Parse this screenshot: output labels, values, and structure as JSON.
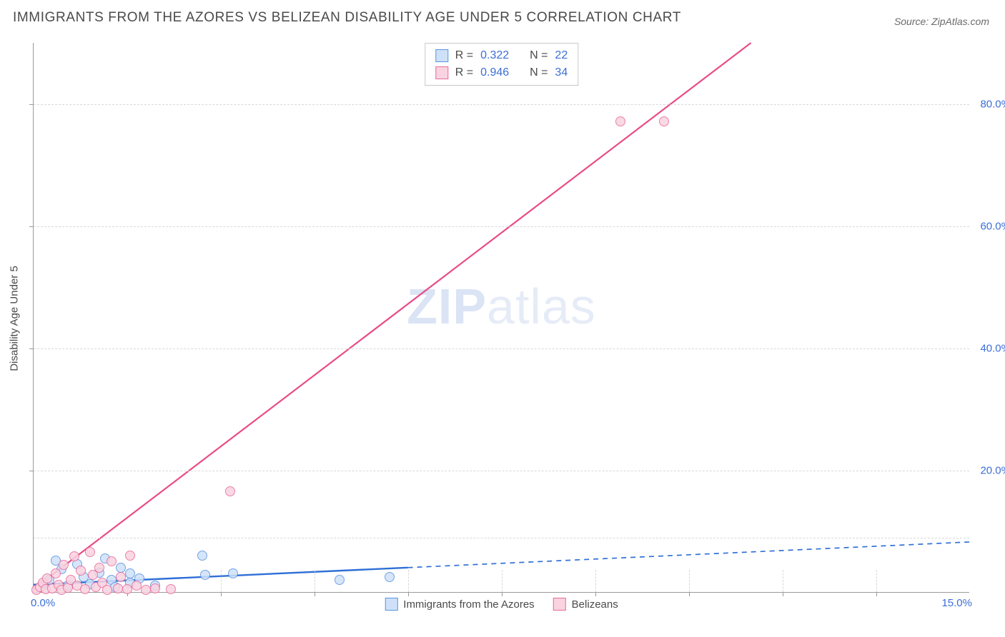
{
  "title": "IMMIGRANTS FROM THE AZORES VS BELIZEAN DISABILITY AGE UNDER 5 CORRELATION CHART",
  "source_label": "Source:",
  "source_value": "ZipAtlas.com",
  "watermark": {
    "zip": "ZIP",
    "rest": "atlas"
  },
  "chart": {
    "type": "scatter",
    "y_axis_label": "Disability Age Under 5",
    "xlim": [
      0,
      15
    ],
    "ylim": [
      0,
      90
    ],
    "x_ticks_minor": [
      1.5,
      3.0,
      4.5,
      6.0,
      7.5,
      9.0,
      10.5,
      12.0,
      13.5
    ],
    "y_gridlines": [
      9,
      20,
      40,
      60,
      80
    ],
    "y_tick_labels": [
      {
        "y": 20,
        "label": "20.0%"
      },
      {
        "y": 40,
        "label": "40.0%"
      },
      {
        "y": 60,
        "label": "60.0%"
      },
      {
        "y": 80,
        "label": "80.0%"
      }
    ],
    "x_origin_label": "0.0%",
    "x_max_label": "15.0%",
    "grid_color": "#d8d8d8",
    "axis_color": "#9a9a9a",
    "tick_label_color": "#3b6fd6",
    "background_color": "#ffffff"
  },
  "series": [
    {
      "key": "azores",
      "label": "Immigrants from the Azores",
      "fill_color": "#cfe1f8",
      "stroke_color": "#5a93e0",
      "line_color": "#2e6fd6",
      "line_width": 2.4,
      "R": "0.322",
      "N": "22",
      "trend_solid": {
        "x1": 0,
        "y1": 1.2,
        "x2": 6.0,
        "y2": 4.0
      },
      "trend_dashed": {
        "x1": 6.0,
        "y1": 4.0,
        "x2": 15.0,
        "y2": 8.2
      },
      "points": [
        {
          "x": 0.15,
          "y": 1.2
        },
        {
          "x": 0.25,
          "y": 2.0
        },
        {
          "x": 0.35,
          "y": 5.2
        },
        {
          "x": 0.45,
          "y": 3.8
        },
        {
          "x": 0.55,
          "y": 1.0
        },
        {
          "x": 0.7,
          "y": 4.6
        },
        {
          "x": 0.8,
          "y": 2.5
        },
        {
          "x": 0.9,
          "y": 1.3
        },
        {
          "x": 1.05,
          "y": 3.2
        },
        {
          "x": 1.15,
          "y": 5.5
        },
        {
          "x": 1.25,
          "y": 2.0
        },
        {
          "x": 1.3,
          "y": 0.8
        },
        {
          "x": 1.4,
          "y": 4.0
        },
        {
          "x": 1.55,
          "y": 1.5
        },
        {
          "x": 1.55,
          "y": 3.0
        },
        {
          "x": 1.7,
          "y": 2.2
        },
        {
          "x": 1.95,
          "y": 1.0
        },
        {
          "x": 2.7,
          "y": 6.0
        },
        {
          "x": 2.75,
          "y": 2.8
        },
        {
          "x": 3.2,
          "y": 3.0
        },
        {
          "x": 4.9,
          "y": 2.0
        },
        {
          "x": 5.7,
          "y": 2.5
        }
      ]
    },
    {
      "key": "belizeans",
      "label": "Belizeans",
      "fill_color": "#f9d3e0",
      "stroke_color": "#e86a9a",
      "line_color": "#e94b86",
      "line_width": 2.2,
      "R": "0.946",
      "N": "34",
      "trend_solid": {
        "x1": 0,
        "y1": 0.5,
        "x2": 11.5,
        "y2": 90.0
      },
      "trend_dashed": null,
      "points": [
        {
          "x": 0.05,
          "y": 0.4
        },
        {
          "x": 0.1,
          "y": 0.8
        },
        {
          "x": 0.15,
          "y": 1.5
        },
        {
          "x": 0.2,
          "y": 0.5
        },
        {
          "x": 0.22,
          "y": 2.2
        },
        {
          "x": 0.3,
          "y": 0.6
        },
        {
          "x": 0.35,
          "y": 3.0
        },
        {
          "x": 0.4,
          "y": 1.2
        },
        {
          "x": 0.45,
          "y": 0.4
        },
        {
          "x": 0.48,
          "y": 4.5
        },
        {
          "x": 0.55,
          "y": 0.7
        },
        {
          "x": 0.6,
          "y": 2.0
        },
        {
          "x": 0.65,
          "y": 5.8
        },
        {
          "x": 0.7,
          "y": 1.0
        },
        {
          "x": 0.75,
          "y": 3.5
        },
        {
          "x": 0.82,
          "y": 0.5
        },
        {
          "x": 0.9,
          "y": 6.5
        },
        {
          "x": 0.95,
          "y": 2.8
        },
        {
          "x": 1.0,
          "y": 0.8
        },
        {
          "x": 1.05,
          "y": 4.0
        },
        {
          "x": 1.1,
          "y": 1.5
        },
        {
          "x": 1.18,
          "y": 0.4
        },
        {
          "x": 1.25,
          "y": 5.0
        },
        {
          "x": 1.35,
          "y": 0.6
        },
        {
          "x": 1.4,
          "y": 2.5
        },
        {
          "x": 1.5,
          "y": 0.5
        },
        {
          "x": 1.55,
          "y": 6.0
        },
        {
          "x": 1.65,
          "y": 1.0
        },
        {
          "x": 1.8,
          "y": 0.4
        },
        {
          "x": 1.95,
          "y": 0.6
        },
        {
          "x": 2.2,
          "y": 0.5
        },
        {
          "x": 3.15,
          "y": 16.5
        },
        {
          "x": 9.4,
          "y": 77.0
        },
        {
          "x": 10.1,
          "y": 77.0
        }
      ]
    }
  ],
  "legend_stats_cols": {
    "R": "R =",
    "N": "N ="
  }
}
